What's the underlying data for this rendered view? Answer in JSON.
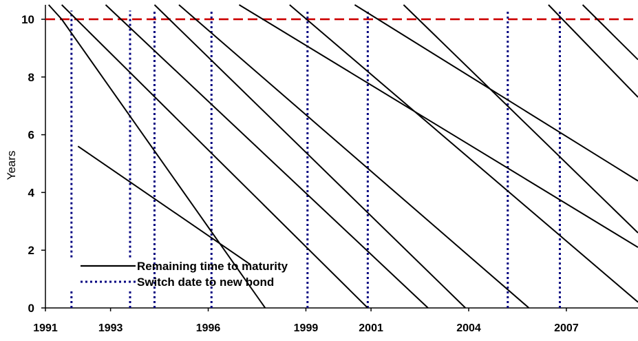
{
  "chart_data": {
    "type": "line",
    "ylabel": "Years",
    "ylim": [
      0,
      10.5
    ],
    "xlim": [
      1991,
      2009.2
    ],
    "y_ticks": [
      0,
      2,
      4,
      6,
      8,
      10
    ],
    "y_tick_labels": [
      "0",
      "2",
      "4",
      "6",
      "8",
      "10"
    ],
    "x_ticks": [
      1991,
      1993,
      1996,
      1999,
      2001,
      2004,
      2007
    ],
    "x_tick_labels": [
      "1991",
      "1993",
      "1996",
      "1999",
      "2001",
      "2004",
      "2007"
    ],
    "legend": {
      "position": "bottom-left",
      "entries": [
        {
          "label": "Remaining time to maturity",
          "style": "solid",
          "color": "#000000"
        },
        {
          "label": "Switch date to new bond",
          "style": "dotted",
          "color": "#000080"
        }
      ]
    },
    "reference_line": {
      "y": 10,
      "color": "#cc0000",
      "style": "dashed"
    },
    "maturity_lines": [
      {
        "x": [
          1991.1,
          1991.5,
          1997.75
        ],
        "y": [
          10.5,
          10.0,
          0.0
        ]
      },
      {
        "x": [
          1992.0,
          1997.3
        ],
        "y": [
          5.6,
          1.5
        ]
      },
      {
        "x": [
          1991.5,
          2000.9
        ],
        "y": [
          10.5,
          0.0
        ]
      },
      {
        "x": [
          1992.85,
          2002.75
        ],
        "y": [
          10.5,
          0.0
        ]
      },
      {
        "x": [
          1994.35,
          2003.9
        ],
        "y": [
          10.5,
          0.0
        ]
      },
      {
        "x": [
          1995.1,
          2005.85
        ],
        "y": [
          10.5,
          0.0
        ]
      },
      {
        "x": [
          1996.95,
          2009.2
        ],
        "y": [
          10.5,
          2.1
        ]
      },
      {
        "x": [
          1998.5,
          2009.2
        ],
        "y": [
          10.5,
          0.2
        ]
      },
      {
        "x": [
          2000.5,
          2009.2
        ],
        "y": [
          10.5,
          4.4
        ]
      },
      {
        "x": [
          2002.0,
          2009.2
        ],
        "y": [
          10.5,
          2.6
        ]
      },
      {
        "x": [
          2006.45,
          2009.2
        ],
        "y": [
          10.5,
          7.3
        ]
      },
      {
        "x": [
          2007.5,
          2009.2
        ],
        "y": [
          10.5,
          8.6
        ]
      }
    ],
    "switch_dates": [
      {
        "x": 1991.8,
        "y_range": [
          0,
          10.3
        ],
        "gap": [
          1.75,
          0.6
        ]
      },
      {
        "x": 1993.6,
        "y_range": [
          0,
          10.3
        ],
        "gap": [
          1.75,
          0.6
        ]
      },
      {
        "x": 1994.35,
        "y_range": [
          0,
          10.3
        ]
      },
      {
        "x": 1996.1,
        "y_range": [
          0,
          10.3
        ]
      },
      {
        "x": 1999.05,
        "y_range": [
          0,
          10.3
        ]
      },
      {
        "x": 2000.9,
        "y_range": [
          0,
          10.3
        ]
      },
      {
        "x": 2005.2,
        "y_range": [
          0,
          10.3
        ]
      },
      {
        "x": 2006.8,
        "y_range": [
          0,
          10.3
        ]
      }
    ]
  }
}
